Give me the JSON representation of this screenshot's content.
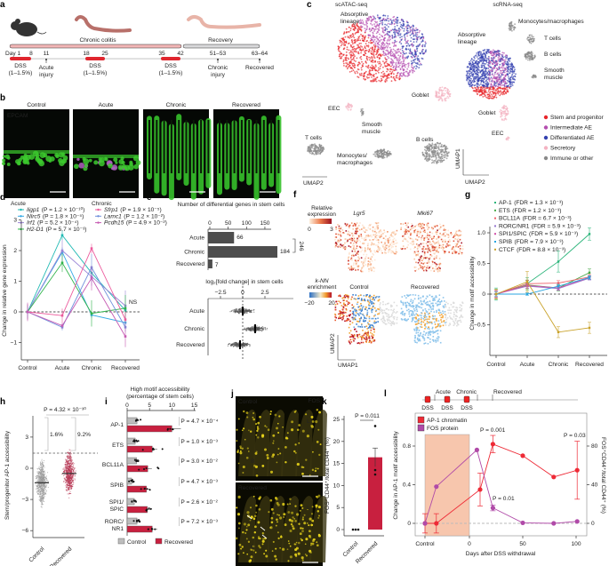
{
  "panel_labels": [
    "a",
    "b",
    "c",
    "d",
    "e",
    "f",
    "g",
    "h",
    "i",
    "j",
    "k",
    "l"
  ],
  "a": {
    "chronic_colitis": "Chronic colitis",
    "recovery": "Recovery",
    "day_labels": [
      "Day 1",
      "8",
      "11",
      "18",
      "25",
      "35",
      "42",
      "51–53",
      "63–64"
    ],
    "dss": "DSS",
    "dss_conc": "(1–1.5%)",
    "events": [
      [
        "Acute",
        "injury"
      ],
      [
        "Chronic",
        "injury"
      ],
      [
        "Recovered",
        ""
      ]
    ],
    "colors": {
      "dss": "#e0262f",
      "colitis_bar": "#f2b6b6",
      "recovery_bar": "#d9d9db"
    }
  },
  "b": {
    "titles": [
      "Control",
      "Acute",
      "Chronic",
      "Recovered"
    ],
    "stain": "EPCAM",
    "stain_color": "#36c12b"
  },
  "c": {
    "atac_title": "scATAC-seq",
    "rna_title": "scRNA-seq",
    "atac_labels": [
      [
        "Absorptive",
        "lineage"
      ],
      [
        "Goblet",
        ""
      ],
      [
        "EEC",
        ""
      ],
      [
        "Smooth",
        "muscle"
      ],
      [
        "T cells",
        ""
      ],
      [
        "Monocytes/",
        "macrophages"
      ],
      [
        "B cells",
        ""
      ]
    ],
    "rna_labels": [
      [
        "Absorptive",
        "lineage"
      ],
      [
        "Monocytes/macrophages",
        ""
      ],
      [
        "T cells",
        ""
      ],
      [
        "B cells",
        ""
      ],
      [
        "Smooth",
        "muscle"
      ],
      [
        "Goblet",
        ""
      ],
      [
        "EEC",
        ""
      ]
    ],
    "legend": [
      {
        "label": "Stem and progenitor",
        "color": "#e8262b"
      },
      {
        "label": "Intermediate AE",
        "color": "#b54fb0"
      },
      {
        "label": "Differentiated AE",
        "color": "#3442b0"
      },
      {
        "label": "Secretory",
        "color": "#f4b3c2"
      },
      {
        "label": "Immune or other",
        "color": "#8a8a8a"
      }
    ],
    "umap1": "UMAP1",
    "umap2": "UMAP2"
  },
  "f": {
    "rel_expr_title": [
      "Relative",
      "expression"
    ],
    "rel_expr_ticks": [
      "0",
      "3"
    ],
    "genes": [
      "Lgr5",
      "Mki67"
    ],
    "knn_title": [
      "k-NN",
      "enrichment"
    ],
    "knn_ticks": [
      "−20",
      "20"
    ],
    "conditions": [
      "Control",
      "Recovered"
    ],
    "umap1": "UMAP1",
    "umap2": "UMAP2"
  },
  "j": {
    "conditions": [
      "Control",
      "Recovered"
    ],
    "stain": "FOS",
    "lumen": "L",
    "base": "B",
    "stain_color": "#e6d21a"
  },
  "chart_data": [
    {
      "panel": "d",
      "type": "line",
      "categories": [
        "Control",
        "Acute",
        "Chronic",
        "Recovered"
      ],
      "ylabel": "Change in relative gene expression",
      "yticks": [
        "−1",
        "0",
        "1",
        "2",
        "3"
      ],
      "ylim": [
        -1.5,
        3
      ],
      "group_titles": [
        "Acute",
        "Chronic"
      ],
      "annotation": "NS",
      "series": [
        {
          "name": "Iigp1",
          "p": "(P = 1.2 × 10⁻¹⁰)",
          "color": "#1fb9b3",
          "values": [
            0,
            2.5,
            1.27,
            0.05
          ],
          "err": [
            0.25,
            0.15,
            0.15,
            0.2
          ]
        },
        {
          "name": "Nlrc5",
          "p": "(P = 1.8 × 10⁻⁵)",
          "color": "#34a9e6",
          "values": [
            0,
            1.95,
            -0.1,
            -0.35
          ],
          "err": [
            0.2,
            0.15,
            0.1,
            0.2
          ]
        },
        {
          "name": "Irf1",
          "p": "(P = 5.2 × 10⁻⁴)",
          "color": "#9b86d6",
          "values": [
            0,
            2.0,
            1.15,
            0.2
          ],
          "err": [
            0.2,
            0.35,
            0.3,
            0.5
          ]
        },
        {
          "name": "H2-D1",
          "p": "(P = 5.7 × 10⁻³)",
          "color": "#2fb34a",
          "values": [
            0,
            1.6,
            -0.05,
            0.12
          ],
          "err": [
            0.2,
            0.3,
            0.43,
            0.43
          ]
        },
        {
          "name": "Sfrp1",
          "p": "(P = 1.9 × 10⁻⁵)",
          "color": "#ec5a9c",
          "values": [
            0,
            -0.12,
            2.07,
            -0.25
          ],
          "err": [
            0.25,
            0.23,
            0.15,
            0.25
          ]
        },
        {
          "name": "Lamc1",
          "p": "(P = 1.2 × 10⁻²)",
          "color": "#6f8fdb",
          "values": [
            0,
            -0.5,
            1.45,
            -0.5
          ],
          "err": [
            0.2,
            0.1,
            0.45,
            0.15
          ]
        },
        {
          "name": "Pcdh15",
          "p": "(P = 4.9 × 10⁻²)",
          "color": "#c65bb3",
          "values": [
            0,
            -0.45,
            1.1,
            -0.8
          ],
          "err": [
            0.3,
            0.1,
            0.4,
            0.35
          ]
        }
      ]
    },
    {
      "panel": "e",
      "type": "bar",
      "title": "Number of differential genes in stem cells",
      "categories": [
        "Acute",
        "Chronic",
        "Recovered"
      ],
      "values": [
        66,
        184,
        7
      ],
      "xticks": [
        "0",
        "50",
        "100",
        "150"
      ],
      "xlim": [
        0,
        185
      ],
      "bracket_label": "246",
      "color": "#4d4d4d"
    },
    {
      "panel": "e",
      "type": "scatter",
      "title": "log₂[fold change] in stem cells",
      "categories": [
        "Acute",
        "Chronic",
        "Recovered"
      ],
      "medians": [
        0,
        1.4,
        -0.3
      ],
      "xticks": [
        "−2.5",
        "0",
        "2.5"
      ],
      "xlim": [
        -4.5,
        5
      ]
    },
    {
      "panel": "g",
      "type": "line",
      "categories": [
        "Control",
        "Acute",
        "Chronic",
        "Recovered"
      ],
      "ylabel": "Change in motif accessibility",
      "yticks": [
        "−0.5",
        "0",
        "0.5",
        "1.0"
      ],
      "ylim": [
        -1.0,
        1.15
      ],
      "series": [
        {
          "name": "AP-1",
          "fdr": "(FDR = 1.3 × 10⁻³)",
          "color": "#2bb47a",
          "values": [
            0,
            0.17,
            0.53,
            0.98
          ],
          "err": [
            0.1,
            0.1,
            0.17,
            0.1
          ]
        },
        {
          "name": "ETS",
          "fdr": "(FDR = 1.2 × 10⁻³)",
          "color": "#45a845",
          "values": [
            0,
            0.15,
            0.1,
            0.35
          ],
          "err": [
            0.08,
            0.08,
            0.05,
            0.06
          ]
        },
        {
          "name": "BCL11A",
          "fdr": "(FDR = 6.7 × 10⁻³)",
          "color": "#ee6068",
          "values": [
            0,
            0.17,
            0.18,
            0.28
          ],
          "err": [
            0.06,
            0.05,
            0.04,
            0.04
          ]
        },
        {
          "name": "RORC/NR1",
          "fdr": "(FDR = 5.9 × 10⁻³)",
          "color": "#9576cf",
          "values": [
            0,
            0.13,
            0.09,
            0.26
          ],
          "err": [
            0.05,
            0.04,
            0.03,
            0.03
          ]
        },
        {
          "name": "SPI1/SPIC",
          "fdr": "(FDR = 5.9 × 10⁻³)",
          "color": "#d050a8",
          "values": [
            0,
            0.14,
            0.1,
            0.27
          ],
          "err": [
            0.05,
            0.04,
            0.03,
            0.03
          ]
        },
        {
          "name": "SPIB",
          "fdr": "(FDR = 7.9 × 10⁻³)",
          "color": "#29a6e0",
          "values": [
            0,
            0,
            0.13,
            0.27
          ],
          "err": [
            0.04,
            0.02,
            0.03,
            0.03
          ]
        },
        {
          "name": "CTCF",
          "fdr": "(FDR = 8.8 × 10⁻³)",
          "color": "#c9a22a",
          "values": [
            0,
            0.2,
            -0.62,
            -0.55
          ],
          "err": [
            0.08,
            0.17,
            0.09,
            0.09
          ]
        }
      ]
    },
    {
      "panel": "h",
      "type": "scatter",
      "ylabel": "Stem/progenitor AP-1 accessibility",
      "categories": [
        "Control",
        "Recovered"
      ],
      "medians": [
        -1.4,
        -0.5
      ],
      "yticks": [
        "−6",
        "−3",
        "0",
        "3"
      ],
      "ylim": [
        -6.5,
        5
      ],
      "threshold": 1.45,
      "percent_above": [
        "1.6%",
        "9.2%"
      ],
      "p_value": "P = 4.32 × 10⁻³⁰",
      "colors": [
        "#9a9a9a",
        "#b83a55"
      ]
    },
    {
      "panel": "i",
      "type": "bar",
      "title": [
        "High motif accessibility",
        "(percentage of stem cells)"
      ],
      "categories": [
        [
          "AP-1"
        ],
        [
          "ETS"
        ],
        [
          "BCL11A"
        ],
        [
          "SPIB"
        ],
        [
          "SPI1/",
          "SPIC"
        ],
        [
          "RORC/",
          "NR1"
        ]
      ],
      "series": [
        {
          "name": "Control",
          "color": "#bdbdbd",
          "values": [
            2.2,
            1.8,
            2.1,
            1.0,
            1.6,
            2.2
          ]
        },
        {
          "name": "Recovered",
          "color": "#c8203f",
          "values": [
            10.0,
            5.6,
            4.6,
            4.3,
            4.5,
            5.6
          ]
        }
      ],
      "p_values": [
        "P = 4.7 × 10⁻⁴",
        "P = 1.0 × 10⁻³",
        "P = 3.0 × 10⁻²",
        "P = 4.7 × 10⁻³",
        "P = 2.6 × 10⁻²",
        "P = 7.2 × 10⁻³"
      ],
      "xticks": [
        "0",
        "5",
        "10",
        "15"
      ],
      "xlim": [
        0,
        16
      ]
    },
    {
      "panel": "k",
      "type": "bar",
      "ylabel": "FOS⁺CD44⁺/total CD44⁺ (%)",
      "categories": [
        "Control",
        "Recovered"
      ],
      "values": [
        0,
        16.4
      ],
      "points": [
        [
          0,
          0,
          0
        ],
        [
          23.5,
          13.5,
          12.5
        ]
      ],
      "err": [
        0,
        2.1
      ],
      "yticks": [
        "0",
        "5",
        "10",
        "15",
        "20",
        "25"
      ],
      "ylim": [
        0,
        26
      ],
      "p_value": "P = 0.011",
      "color": "#c8203f"
    },
    {
      "panel": "l",
      "type": "line",
      "xlabel": "Days after DSS withdrawal",
      "xticks": [
        "Control",
        "0",
        "50",
        "100"
      ],
      "ylabel_left": "Change in AP-1 motif accessibility",
      "ylabel_right": "FOS⁺CD44⁺/total CD44⁺ (%)",
      "yticks_left": [
        "0",
        "0.4",
        "0.8"
      ],
      "yticks_right": [
        "0",
        "40",
        "80"
      ],
      "ylim_left": [
        -0.13,
        0.95
      ],
      "ylim_right": [
        -13,
        95
      ],
      "schematic_labels": [
        "Acute",
        "Chronic",
        "Recovered"
      ],
      "dss": "DSS",
      "p_values": [
        "P = 0.001",
        "P = 0.01",
        "P = 0.03"
      ],
      "series": [
        {
          "name": "AP-1 chromatin",
          "color": "#ee2a36",
          "x": [
            "Control",
            -31,
            10,
            22,
            50,
            79,
            101
          ],
          "values": [
            0,
            0,
            0.35,
            0.82,
            0.7,
            0.48,
            0.55
          ],
          "err": [
            0.1,
            0.1,
            0.17,
            0.09,
            0,
            0,
            0.3
          ]
        },
        {
          "name": "FOS protein",
          "color": "#b04aa8",
          "x": [
            "Control",
            -31,
            7,
            22,
            50,
            79,
            101
          ],
          "values": [
            0,
            38,
            76,
            16,
            0.5,
            0,
            2
          ],
          "err": [
            0,
            0,
            0,
            3,
            0,
            0,
            0
          ]
        }
      ],
      "shade_color": "#f7c6ad"
    }
  ]
}
